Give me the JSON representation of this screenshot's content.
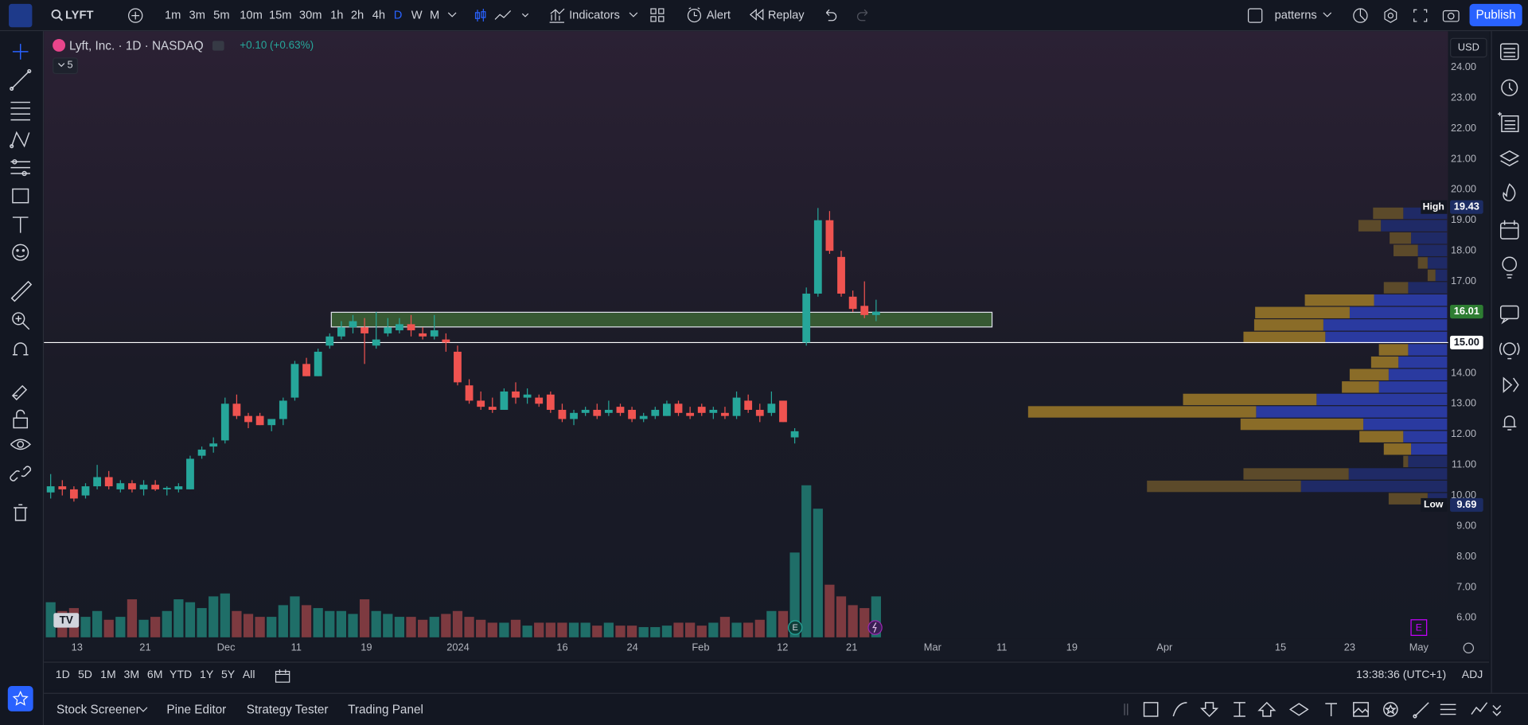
{
  "toolbar": {
    "symbol": "LYFT",
    "intervals": [
      "1m",
      "3m",
      "5m",
      "10m",
      "15m",
      "30m",
      "1h",
      "2h",
      "4h",
      "D",
      "W",
      "M"
    ],
    "active": "D",
    "indicators": "Indicators",
    "alert": "Alert",
    "replay": "Replay",
    "layout": "patterns",
    "publish": "Publish"
  },
  "legend": {
    "title": "Lyft, Inc. · 1D · NASDAQ",
    "change": "+0.10 (+0.63%)",
    "count": "5"
  },
  "chart": {
    "type": "candlestick",
    "currency": "USD",
    "open": [
      10.1,
      10.3,
      10.2,
      10.0,
      10.3,
      10.6,
      10.2,
      10.4,
      10.2,
      10.35,
      10.2,
      10.2,
      10.2,
      11.3,
      11.6,
      11.8,
      13.0,
      12.6,
      12.6,
      12.3,
      12.5,
      13.2,
      14.3,
      13.9,
      14.9,
      15.2,
      15.5,
      15.5,
      14.9,
      15.3,
      15.4,
      15.6,
      15.3,
      15.2,
      15.1,
      14.7,
      13.6,
      13.1,
      12.9,
      12.8,
      13.4,
      13.2,
      13.2,
      13.3,
      12.8,
      12.5,
      12.7,
      12.8,
      12.7,
      12.9,
      12.8,
      12.5,
      12.6,
      12.6,
      13.0,
      12.7,
      12.9,
      12.7,
      12.7,
      12.6,
      13.1,
      12.8,
      12.7,
      13.1,
      11.9,
      15.0,
      16.6,
      19.0,
      17.8,
      16.5,
      16.2,
      15.9
    ],
    "high": [
      10.7,
      10.5,
      10.3,
      10.4,
      11.0,
      10.8,
      10.5,
      10.5,
      10.5,
      10.5,
      10.3,
      10.4,
      11.3,
      11.6,
      11.9,
      13.2,
      13.3,
      12.7,
      12.7,
      12.5,
      13.2,
      14.4,
      14.5,
      14.8,
      15.3,
      15.7,
      15.9,
      15.8,
      16.0,
      15.8,
      15.8,
      15.9,
      15.5,
      15.9,
      15.3,
      14.9,
      13.8,
      13.4,
      13.2,
      13.5,
      13.7,
      13.5,
      13.3,
      13.4,
      13.0,
      12.8,
      12.9,
      13.0,
      13.1,
      13.0,
      12.9,
      12.7,
      12.9,
      13.1,
      13.1,
      12.9,
      13.0,
      12.9,
      12.9,
      13.4,
      13.3,
      13.0,
      13.4,
      13.1,
      12.2,
      16.8,
      19.4,
      19.3,
      18.0,
      16.7,
      17.0,
      16.4
    ],
    "low": [
      9.9,
      10.0,
      9.8,
      9.9,
      10.2,
      10.2,
      10.1,
      10.1,
      10.0,
      10.15,
      10.0,
      10.1,
      10.2,
      11.2,
      11.4,
      11.7,
      12.5,
      12.2,
      12.3,
      12.1,
      12.3,
      13.1,
      13.9,
      13.9,
      14.8,
      15.1,
      15.3,
      14.3,
      14.8,
      15.2,
      15.3,
      15.2,
      15.1,
      15.1,
      14.7,
      13.6,
      13.0,
      12.8,
      12.7,
      12.8,
      13.0,
      13.0,
      12.9,
      12.7,
      12.4,
      12.3,
      12.6,
      12.5,
      12.6,
      12.6,
      12.4,
      12.4,
      12.5,
      12.6,
      12.6,
      12.5,
      12.6,
      12.5,
      12.5,
      12.5,
      12.7,
      12.4,
      12.6,
      12.4,
      11.7,
      14.9,
      16.5,
      17.9,
      16.5,
      16.0,
      15.8,
      15.7
    ],
    "close": [
      10.3,
      10.2,
      9.9,
      10.3,
      10.6,
      10.3,
      10.4,
      10.2,
      10.35,
      10.2,
      10.25,
      10.3,
      11.2,
      11.5,
      11.7,
      13.0,
      12.6,
      12.4,
      12.3,
      12.5,
      13.1,
      14.3,
      13.9,
      14.7,
      15.2,
      15.5,
      15.7,
      15.3,
      15.1,
      15.5,
      15.6,
      15.4,
      15.2,
      15.4,
      15.0,
      13.7,
      13.1,
      12.9,
      12.8,
      13.4,
      13.2,
      13.3,
      13.0,
      12.8,
      12.5,
      12.7,
      12.8,
      12.6,
      12.8,
      12.7,
      12.5,
      12.6,
      12.8,
      13.0,
      12.7,
      12.6,
      12.7,
      12.8,
      12.6,
      13.2,
      12.8,
      12.6,
      13.0,
      12.4,
      12.1,
      16.6,
      19.0,
      18.0,
      16.6,
      16.1,
      15.9,
      16.01
    ],
    "volume": [
      12,
      9,
      10,
      7,
      9,
      6,
      7,
      13,
      6,
      7,
      9,
      13,
      12,
      10,
      14,
      15,
      9,
      8,
      7,
      7,
      11,
      14,
      11,
      10,
      9,
      9,
      8,
      13,
      9,
      8,
      7,
      7,
      6,
      7,
      8,
      9,
      7,
      6,
      5,
      5,
      6,
      4,
      5,
      5,
      5,
      5,
      5,
      4,
      5,
      4,
      4,
      3.5,
      3.5,
      4,
      5,
      5,
      4,
      5,
      7,
      5,
      5,
      6,
      9,
      9,
      29,
      52,
      44,
      18,
      14,
      11,
      10,
      14
    ],
    "vlim": [
      0,
      55
    ],
    "up_color": "#26a69a",
    "down_color": "#ef5350",
    "ylim": [
      5.33,
      24.99
    ],
    "yticks": [
      {
        "value": 24,
        "label": "24.00"
      },
      {
        "value": 23,
        "label": "23.00"
      },
      {
        "value": 22,
        "label": "22.00"
      },
      {
        "value": 21,
        "label": "21.00"
      },
      {
        "value": 20,
        "label": "20.00"
      },
      {
        "value": 19,
        "label": "19.00"
      },
      {
        "value": 18,
        "label": "18.00"
      },
      {
        "value": 17,
        "label": "17.00"
      },
      {
        "value": 16,
        "label": "16.00"
      },
      {
        "value": 15,
        "label": "15.00"
      },
      {
        "value": 14,
        "label": "14.00"
      },
      {
        "value": 13,
        "label": "13.00"
      },
      {
        "value": 12,
        "label": "12.00"
      },
      {
        "value": 11,
        "label": "11.00"
      },
      {
        "value": 10,
        "label": "10.00"
      },
      {
        "value": 9,
        "label": "9.00"
      },
      {
        "value": 8,
        "label": "8.00"
      },
      {
        "value": 7,
        "label": "7.00"
      },
      {
        "value": 6,
        "label": "6.00"
      }
    ],
    "last_price": 16.01,
    "level": {
      "value": 15,
      "label": "15.00"
    },
    "zone": [
      15.51,
      15.99
    ],
    "volume_profile": {
      "high": 19.43,
      "low": 9.69,
      "high_label": "High",
      "low_label": "Low",
      "up": [
        22.5,
        34,
        18.5,
        15,
        10,
        6,
        20,
        37.5,
        50,
        63.5,
        62.5,
        20,
        25,
        30,
        35,
        67,
        98,
        43,
        22.5,
        18.5,
        20,
        50.5,
        75,
        10
      ],
      "down": [
        15.5,
        11.5,
        11,
        12.5,
        5,
        4,
        12.5,
        35.5,
        48.5,
        35.5,
        42,
        15,
        14,
        20,
        19,
        68.5,
        117,
        63,
        22.5,
        14,
        2.5,
        54,
        79,
        20
      ]
    },
    "markers": {
      "earnings": "E",
      "upcoming": "E"
    }
  },
  "time_axis": {
    "labels": [
      "13",
      "21",
      "Dec",
      "11",
      "19",
      "2024",
      "16",
      "24",
      "Feb",
      "12",
      "21",
      "Mar",
      "11",
      "19",
      "Apr",
      "15",
      "23",
      "May"
    ]
  },
  "range_bar": {
    "ranges": [
      "1D",
      "5D",
      "1M",
      "3M",
      "6M",
      "YTD",
      "1Y",
      "5Y",
      "All"
    ],
    "clock": "13:38:36 (UTC+1)",
    "adj": "ADJ"
  },
  "bottom_panel": {
    "tabs": [
      "Stock Screener",
      "Pine Editor",
      "Strategy Tester",
      "Trading Panel"
    ]
  }
}
